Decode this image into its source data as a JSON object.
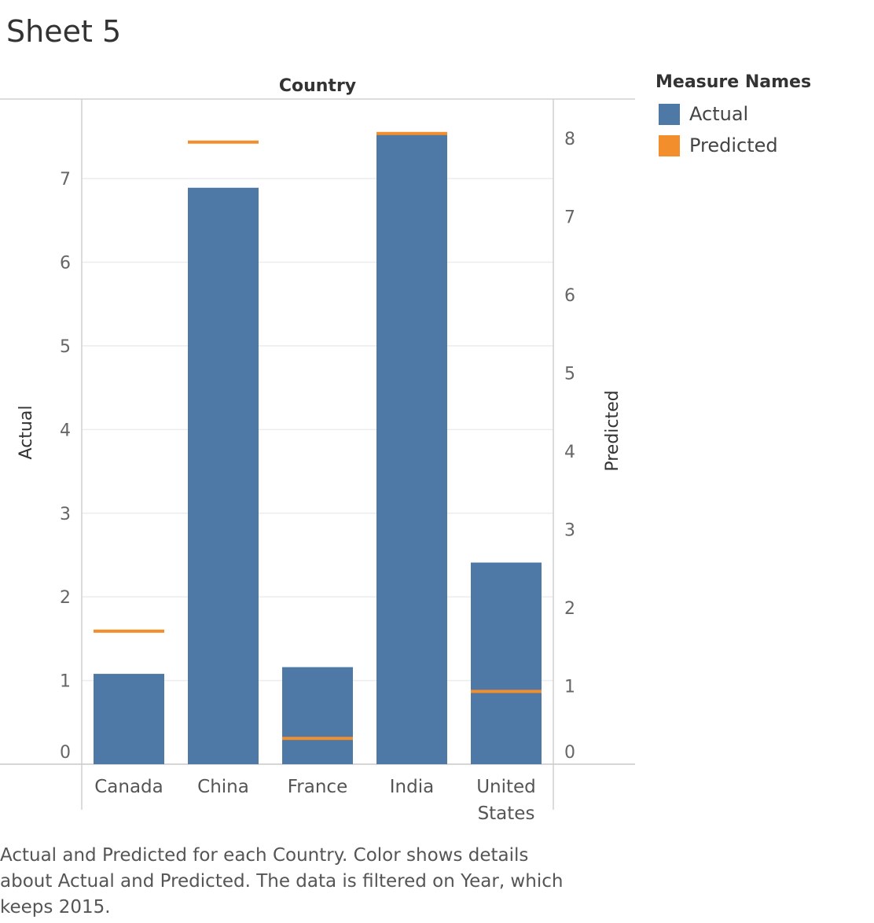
{
  "sheet_title": "Sheet 5",
  "caption": "Actual and Predicted for each Country.  Color shows details about Actual and Predicted. The data is filtered on Year, which keeps 2015.",
  "legend": {
    "title": "Measure Names",
    "items": [
      {
        "label": "Actual",
        "color": "#4e79a7"
      },
      {
        "label": "Predicted",
        "color": "#f28e2b"
      }
    ]
  },
  "chart_data": {
    "type": "bar",
    "title": "",
    "column_header": "Country",
    "categories": [
      "Canada",
      "China",
      "France",
      "India",
      "United States"
    ],
    "series": [
      {
        "name": "Actual",
        "mark": "bar",
        "axis": "left",
        "color": "#4e79a7",
        "values": [
          1.08,
          6.89,
          1.16,
          7.54,
          2.41
        ]
      },
      {
        "name": "Predicted",
        "mark": "tick",
        "axis": "right",
        "color": "#f28e2b",
        "values": [
          1.7,
          7.95,
          0.33,
          8.06,
          0.93
        ]
      }
    ],
    "y_left": {
      "label": "Actual",
      "ticks": [
        0,
        1,
        2,
        3,
        4,
        5,
        6,
        7
      ],
      "range": [
        0,
        7.95
      ]
    },
    "y_right": {
      "label": "Predicted",
      "ticks": [
        0,
        1,
        2,
        3,
        4,
        5,
        6,
        7,
        8
      ],
      "range": [
        0,
        8.5
      ]
    },
    "grid": true
  }
}
